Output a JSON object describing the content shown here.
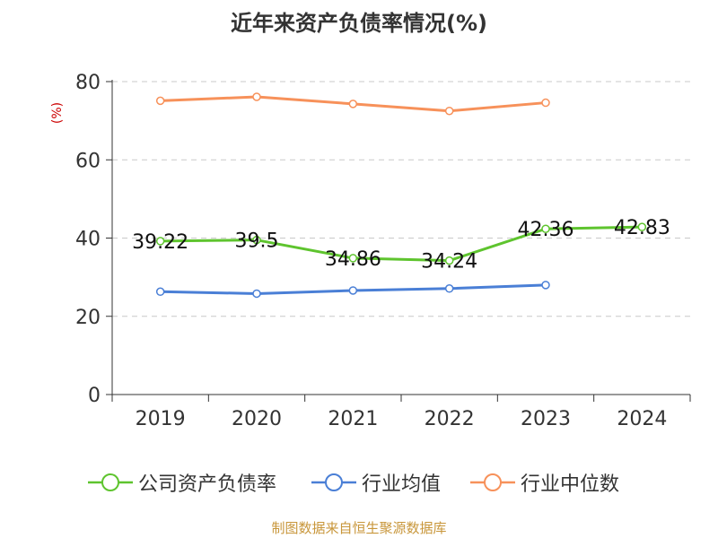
{
  "title": "近年来资产负债率情况(%)",
  "source": "制图数据来自恒生聚源数据库",
  "colors": {
    "company": "#5ec42e",
    "avg": "#4a7fd6",
    "median": "#f7915a",
    "unit": "#cc0000",
    "source": "#c8963a"
  },
  "chart_data": {
    "type": "line",
    "title": "近年来资产负债率情况(%)",
    "ylabel": "(%)",
    "xlabel": "",
    "categories": [
      "2019",
      "2020",
      "2021",
      "2022",
      "2023",
      "2024"
    ],
    "ylim": [
      0,
      80
    ],
    "yticks": [
      0,
      20,
      40,
      60,
      80
    ],
    "grid": true,
    "legend": "bottom",
    "series": [
      {
        "name": "公司资产负债率",
        "values": [
          39.22,
          39.5,
          34.86,
          34.24,
          42.36,
          42.83
        ],
        "labels": [
          "39.22",
          "39.5",
          "34.86",
          "34.24",
          "42.36",
          "42.83"
        ]
      },
      {
        "name": "行业均值",
        "values": [
          26.3,
          25.8,
          26.6,
          27.1,
          28.0,
          null
        ]
      },
      {
        "name": "行业中位数",
        "values": [
          75.1,
          76.1,
          74.3,
          72.5,
          74.6,
          null
        ]
      }
    ]
  }
}
